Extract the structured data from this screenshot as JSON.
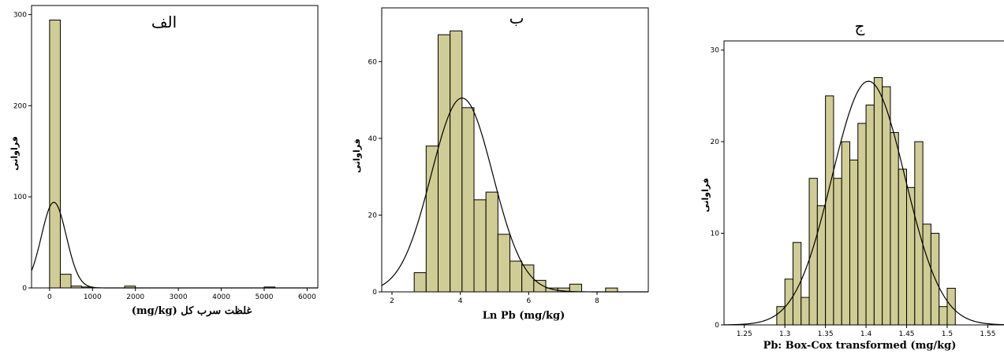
{
  "chart_data": [
    {
      "id": "panel-a",
      "type": "bar",
      "title": "الف",
      "xlabel": "غلظت سرب کل (mg/kg)",
      "ylabel": "فراوانی",
      "xlim": [
        -420,
        6250
      ],
      "ylim": [
        0,
        310
      ],
      "xticks": [
        0,
        1000,
        2000,
        3000,
        4000,
        5000,
        6000
      ],
      "xtick_labels": [
        "0",
        "1000",
        "2000",
        "3000",
        "4000",
        "5000",
        "6000"
      ],
      "yticks": [
        0,
        100,
        200,
        300
      ],
      "ytick_labels": [
        "0",
        "100",
        "200",
        "300"
      ],
      "bin_edges": [
        0,
        250,
        500,
        750,
        1000,
        1250,
        1500,
        1750,
        2000,
        2250,
        2500,
        2750,
        3000,
        3250,
        3500,
        3750,
        4000,
        4250,
        4500,
        4750,
        5000,
        5250
      ],
      "values": [
        294,
        15,
        2,
        1,
        0,
        0,
        0,
        2,
        0,
        0,
        0,
        0,
        0,
        0,
        0,
        0,
        0,
        0,
        0,
        0,
        1
      ],
      "normal_curve": {
        "mean": 100,
        "sd": 290,
        "peak": 94
      }
    },
    {
      "id": "panel-b",
      "type": "bar",
      "title": "ب",
      "xlabel": "Ln Pb (mg/kg)",
      "ylabel": "فراوانی",
      "xlim": [
        1.7,
        9.5
      ],
      "ylim": [
        0,
        74
      ],
      "xticks": [
        2,
        4,
        6,
        8
      ],
      "xtick_labels": [
        "2",
        "4",
        "6",
        "8"
      ],
      "yticks": [
        0,
        20,
        40,
        60
      ],
      "ytick_labels": [
        "0",
        "20",
        "40",
        "60"
      ],
      "bin_edges": [
        2.65,
        3.0,
        3.35,
        3.7,
        4.05,
        4.4,
        4.75,
        5.1,
        5.45,
        5.8,
        6.15,
        6.5,
        6.85,
        7.2,
        7.55,
        7.9,
        8.25,
        8.6
      ],
      "values": [
        5,
        38,
        67,
        68,
        48,
        24,
        26,
        15,
        8,
        7,
        3,
        1,
        1,
        2,
        0,
        0,
        1
      ],
      "normal_curve": {
        "mean": 4.05,
        "sd": 0.9,
        "peak": 50.5
      }
    },
    {
      "id": "panel-c",
      "type": "bar",
      "title": "ج",
      "xlabel": "Pb: Box-Cox transformed (mg/kg)",
      "ylabel": "فراوانی",
      "xlim": [
        1.225,
        1.57
      ],
      "ylim": [
        0,
        31
      ],
      "xticks": [
        1.25,
        1.3,
        1.35,
        1.4,
        1.45,
        1.5,
        1.55
      ],
      "xtick_labels": [
        "1.25",
        "1.3",
        "1.35",
        "1.4",
        "1.45",
        "1.5",
        "1.55"
      ],
      "yticks": [
        0,
        10,
        20,
        30
      ],
      "ytick_labels": [
        "0",
        "10",
        "20",
        "30"
      ],
      "bin_edges": [
        1.29,
        1.3,
        1.31,
        1.32,
        1.33,
        1.34,
        1.35,
        1.36,
        1.37,
        1.38,
        1.39,
        1.4,
        1.41,
        1.42,
        1.43,
        1.44,
        1.45,
        1.46,
        1.47,
        1.48,
        1.49,
        1.5,
        1.51
      ],
      "values": [
        2,
        5,
        9,
        3,
        16,
        13,
        25,
        16,
        20,
        18,
        22,
        24,
        27,
        26,
        21,
        17,
        15,
        20,
        11,
        10,
        2,
        4
      ],
      "normal_curve": {
        "mean": 1.403,
        "sd": 0.045,
        "peak": 26.6
      }
    }
  ]
}
